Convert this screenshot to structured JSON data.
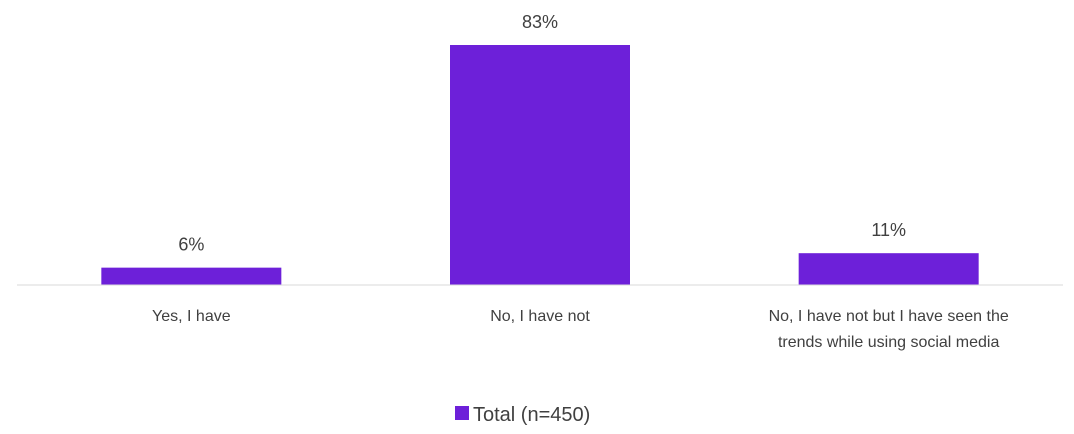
{
  "chart_data": {
    "type": "bar",
    "categories": [
      [
        "Yes, I have"
      ],
      [
        "No, I have not"
      ],
      [
        "No, I have not but I have seen the",
        "trends while using social media"
      ]
    ],
    "series": [
      {
        "name": "Total (n=450)",
        "values": [
          6,
          83,
          11
        ],
        "data_labels": [
          "6%",
          "83%",
          "11%"
        ],
        "color": "#6D20D9"
      }
    ],
    "title": "",
    "xlabel": "",
    "ylabel": "",
    "ylim": [
      0,
      90
    ],
    "grid": false,
    "legend": "bottom",
    "axis_color": "#D9D9D9"
  }
}
